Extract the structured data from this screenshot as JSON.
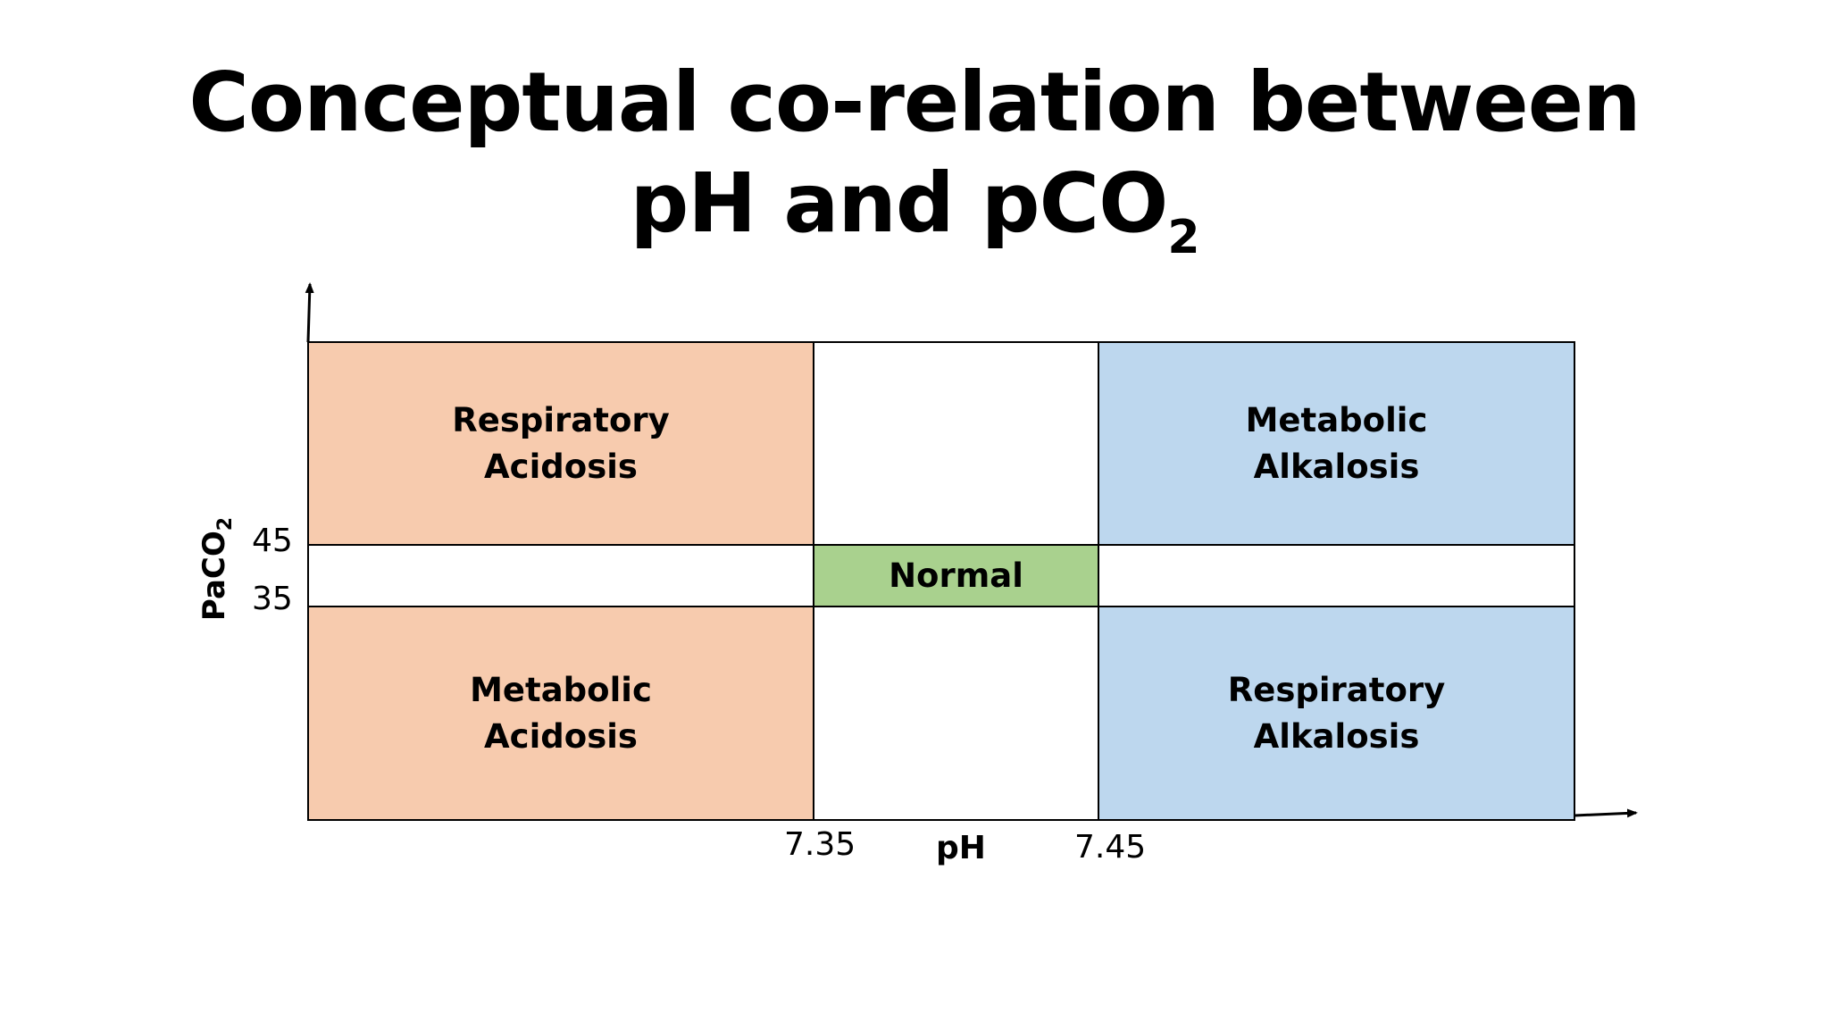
{
  "title": {
    "line1": "Conceptual co-relation between",
    "line2_main": "pH and pCO",
    "line2_sub": "2"
  },
  "axes": {
    "x_title": "pH",
    "y_title_main": "PaCO",
    "y_title_sub": "2",
    "x_ticks": [
      "7.35",
      "7.45"
    ],
    "y_ticks": [
      "45",
      "35"
    ]
  },
  "regions": {
    "respiratory_acidosis": "Respiratory\nAcidosis",
    "metabolic_alkalosis": "Metabolic\nAlkalosis",
    "normal": "Normal",
    "metabolic_acidosis": "Metabolic\nAcidosis",
    "respiratory_alkalosis": "Respiratory\nAlkalosis"
  },
  "colors": {
    "acidosis": "#F7CBAE",
    "alkalosis": "#BDD7EE",
    "normal": "#A9D18E",
    "neutral": "#FFFFFF",
    "border": "#000000"
  }
}
